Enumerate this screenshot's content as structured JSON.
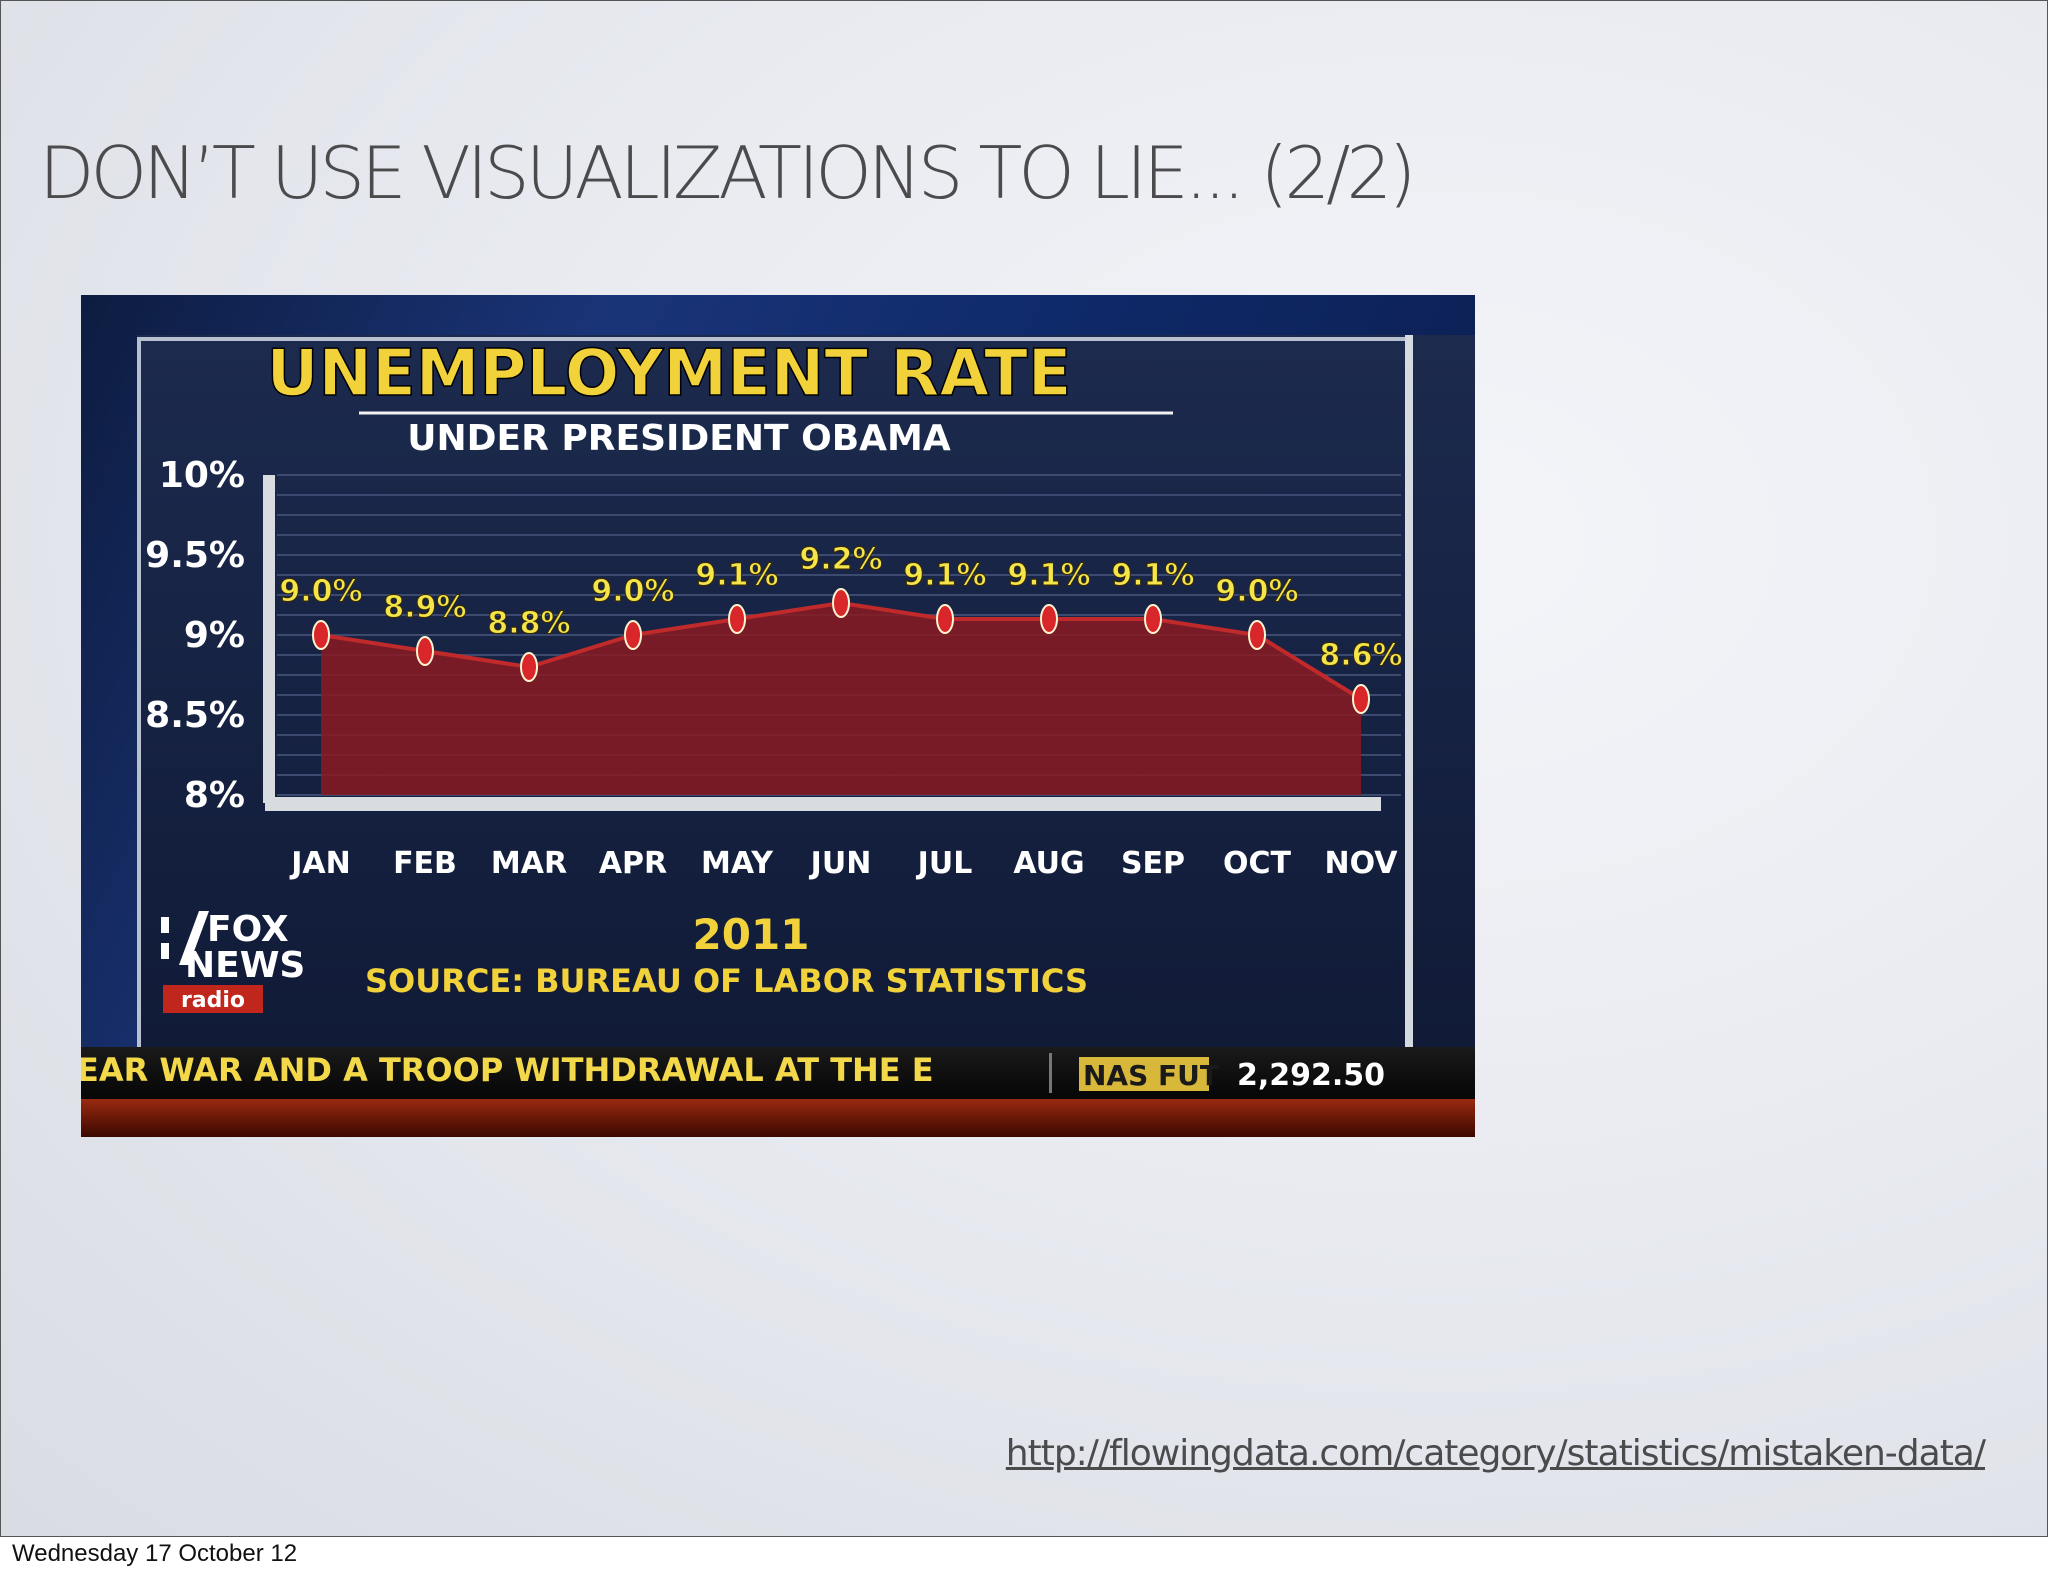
{
  "slide": {
    "title": "DON’T USE VISUALIZATIONS TO LIE... (2/2)",
    "link": "http://flowingdata.com/category/statistics/mistaken-data/",
    "footer_date": "Wednesday 17 October 12"
  },
  "broadcast": {
    "logo_line1": "FOX",
    "logo_line2": "NEWS",
    "logo_line3": "radio",
    "year": "2011",
    "source": "SOURCE: BUREAU OF LABOR STATISTICS",
    "ticker_text": "EAR WAR AND A TROOP WITHDRAWAL AT THE E",
    "market_label": "NAS FUT",
    "market_value": "2,292.50"
  },
  "chart_data": {
    "type": "area",
    "title": "UNEMPLOYMENT RATE",
    "subtitle": "UNDER PRESIDENT OBAMA",
    "categories": [
      "JAN",
      "FEB",
      "MAR",
      "APR",
      "MAY",
      "JUN",
      "JUL",
      "AUG",
      "SEP",
      "OCT",
      "NOV"
    ],
    "values": [
      9.0,
      8.9,
      8.8,
      9.0,
      9.1,
      9.2,
      9.1,
      9.1,
      9.1,
      9.0,
      8.6
    ],
    "data_labels": [
      "9.0%",
      "8.9%",
      "8.8%",
      "9.0%",
      "9.1%",
      "9.2%",
      "9.1%",
      "9.1%",
      "9.1%",
      "9.0%",
      "8.6%"
    ],
    "y_ticks": [
      10,
      9.5,
      9,
      8.5,
      8
    ],
    "y_tick_labels": [
      "10%",
      "9.5%",
      "9%",
      "8.5%",
      "8%"
    ],
    "ylim": [
      8,
      10
    ],
    "grid": true,
    "legend": "none",
    "colors": {
      "area": "#8a1a22",
      "line": "#c02a2a",
      "marker": "#d8262a",
      "title": "#f2d23a",
      "labels": "#f4e64a",
      "axis_text": "#ffffff"
    }
  }
}
